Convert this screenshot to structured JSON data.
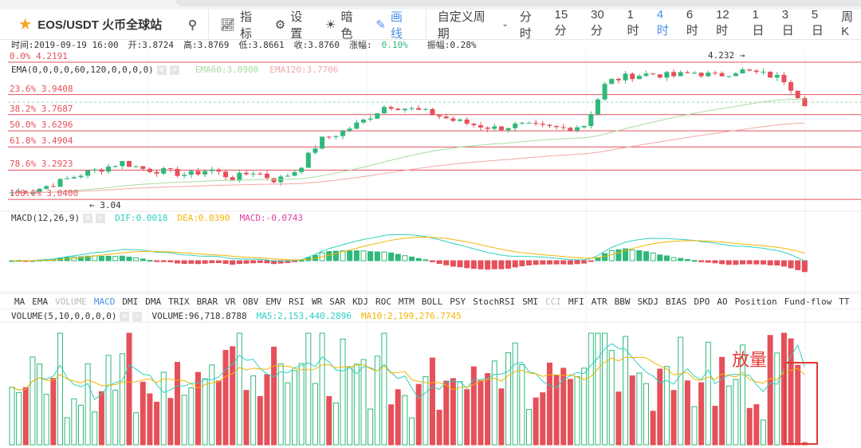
{
  "toolbar": {
    "symbol": "EOS/USDT 火币全球站",
    "indicators": "指标",
    "settings": "设置",
    "dark": "暗色",
    "draw": "画线",
    "custom_period": "自定义周期",
    "periods": [
      "分时",
      "15分",
      "30分",
      "1时",
      "4时",
      "6时",
      "12时",
      "1日",
      "3日",
      "5日",
      "周K"
    ],
    "active_period": "4时"
  },
  "info": {
    "time": "时间:2019-09-19 16:00",
    "open": "开:3.8724",
    "high": "高:3.8769",
    "low": "低:3.8661",
    "close": "收:3.8760",
    "change_label": "涨幅:",
    "change": "0.10%",
    "amplitude": "振幅:0.28%"
  },
  "main": {
    "ema_label": "EMA(0,0,0,0,60,120,0,0,0,0)",
    "ema60": "EMA60:3.8900",
    "ema120": "EMA120:3.7706",
    "high_mark": "4.232 →",
    "low_mark": "← 3.04",
    "fib": [
      {
        "label": "0.0% 4.2191",
        "price": 4.2191
      },
      {
        "label": "23.6% 3.9408",
        "price": 3.9408
      },
      {
        "label": "38.2% 3.7687",
        "price": 3.7687
      },
      {
        "label": "50.0% 3.6296",
        "price": 3.6296
      },
      {
        "label": "61.8% 3.4904",
        "price": 3.4904
      },
      {
        "label": "78.6% 3.2923",
        "price": 3.2923
      },
      {
        "label": "100.0% 3.0400",
        "price": 3.04
      }
    ],
    "last_price": 3.876,
    "price_path": [
      3.1,
      3.12,
      3.18,
      3.25,
      3.3,
      3.36,
      3.3,
      3.28,
      3.25,
      3.3,
      3.22,
      3.28,
      3.2,
      3.3,
      3.55,
      3.62,
      3.72,
      3.85,
      3.82,
      3.78,
      3.72,
      3.68,
      3.65,
      3.68,
      3.66,
      3.65,
      3.68,
      4.05,
      4.1,
      4.12,
      4.1,
      4.13,
      4.1,
      4.15,
      4.12,
      4.08,
      3.87
    ]
  },
  "macd": {
    "label": "MACD(12,26,9)",
    "dif": "DIF:0.0018",
    "dea": "DEA:0.0390",
    "macd": "MACD:-0.0743"
  },
  "indicator_tabs": [
    "MA",
    "EMA",
    "VOLUME",
    "MACD",
    "DMI",
    "DMA",
    "TRIX",
    "BRAR",
    "VR",
    "OBV",
    "EMV",
    "RSI",
    "WR",
    "SAR",
    "KDJ",
    "ROC",
    "MTM",
    "BOLL",
    "PSY",
    "StochRSI",
    "SMI",
    "CCI",
    "MFI",
    "ATR",
    "BBW",
    "SKDJ",
    "BIAS",
    "DPO",
    "AO",
    "Position",
    "Fund-flow",
    "TT"
  ],
  "active_indicator": "MACD",
  "volume": {
    "label": "VOLUME(5,10,0,0,0,0)",
    "volume": "VOLUME:96,718.8788",
    "ma5": "MA5:2,153,440.2896",
    "ma10": "MA10:2,199,276.7745"
  },
  "annotation": "放量",
  "colors": {
    "up": "#2fb87a",
    "down": "#e5505a",
    "accent": "#4a8fe7",
    "fib": "#e5505a",
    "ma5": "#2fd0c0",
    "ma10": "#f5b400"
  }
}
